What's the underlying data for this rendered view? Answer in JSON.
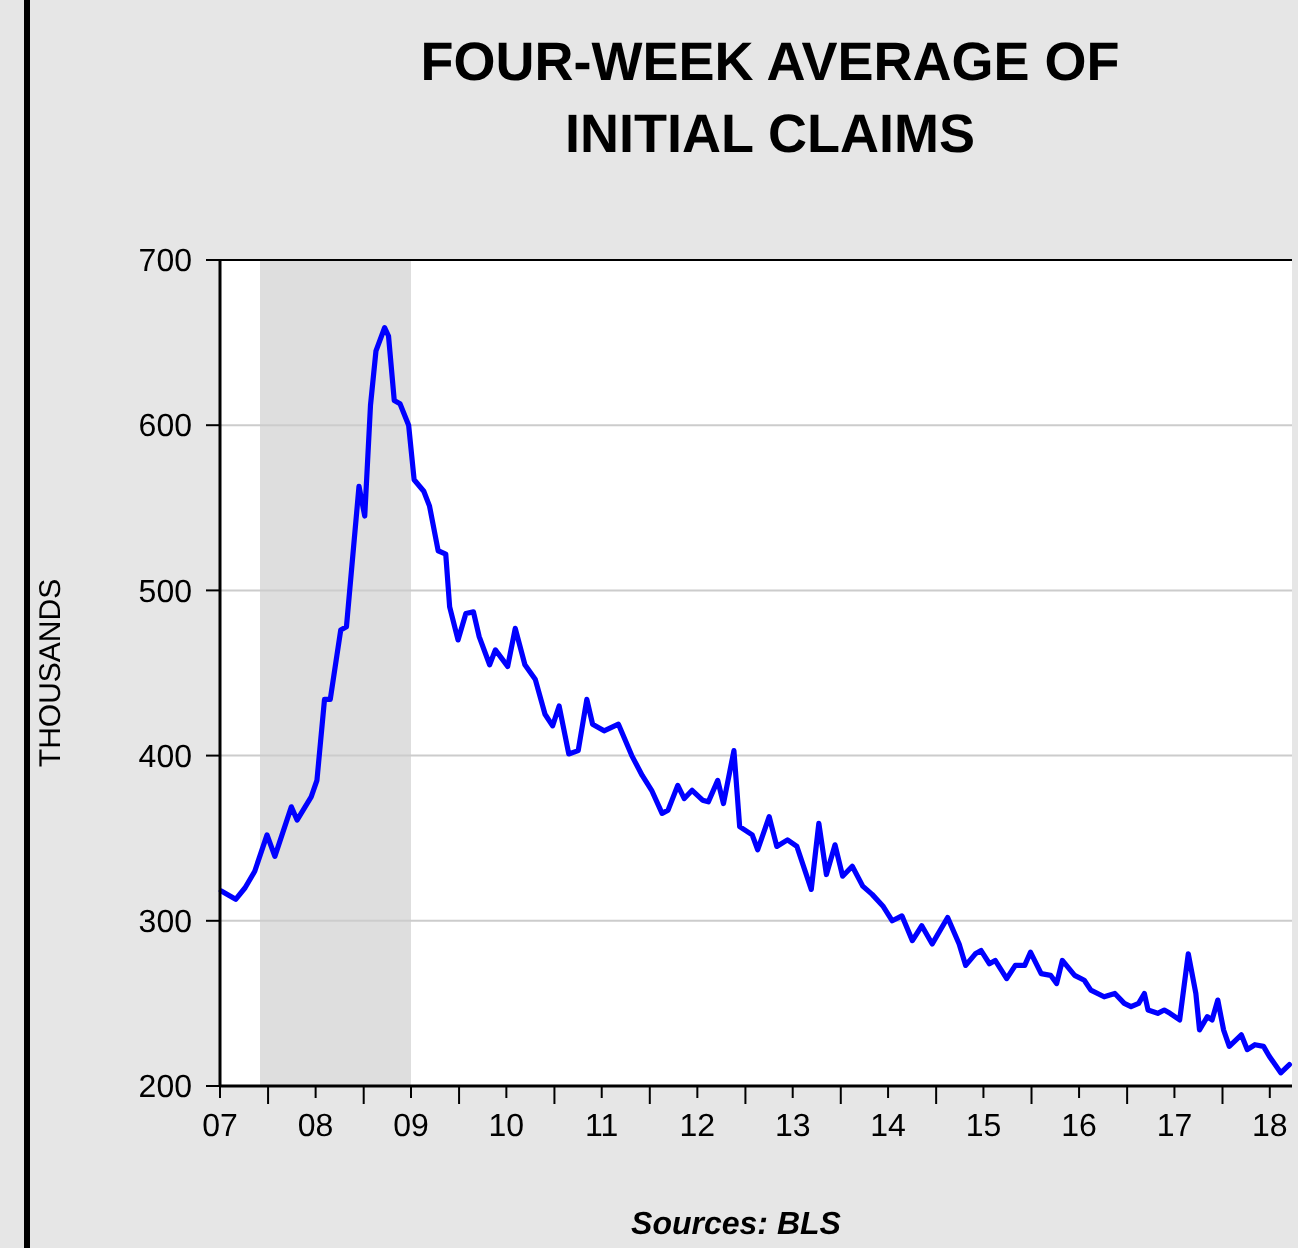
{
  "chart_data": {
    "type": "line",
    "title": "FOUR-WEEK AVERAGE OF INITIAL CLAIMS",
    "ylabel": "THOUSANDS",
    "annotations": [
      "Sources:  BLS"
    ],
    "xlim": [
      "2007-07-01",
      "2018-09-24"
    ],
    "ylim": [
      200,
      700
    ],
    "yticks": [
      200,
      300,
      400,
      500,
      600,
      700
    ],
    "xticks": [
      {
        "value": "2007-07-01",
        "label": "07"
      },
      {
        "value": "2008-01-01",
        "label": null
      },
      {
        "value": "2008-07-01",
        "label": "08"
      },
      {
        "value": "2009-01-01",
        "label": null
      },
      {
        "value": "2009-07-01",
        "label": "09"
      },
      {
        "value": "2010-01-01",
        "label": null
      },
      {
        "value": "2010-07-01",
        "label": "10"
      },
      {
        "value": "2011-01-01",
        "label": null
      },
      {
        "value": "2011-07-01",
        "label": "11"
      },
      {
        "value": "2012-01-01",
        "label": null
      },
      {
        "value": "2012-07-01",
        "label": "12"
      },
      {
        "value": "2013-01-01",
        "label": null
      },
      {
        "value": "2013-07-01",
        "label": "13"
      },
      {
        "value": "2014-01-01",
        "label": null
      },
      {
        "value": "2014-07-01",
        "label": "14"
      },
      {
        "value": "2015-01-01",
        "label": null
      },
      {
        "value": "2015-07-01",
        "label": "15"
      },
      {
        "value": "2016-01-01",
        "label": null
      },
      {
        "value": "2016-07-01",
        "label": "16"
      },
      {
        "value": "2017-01-01",
        "label": null
      },
      {
        "value": "2017-07-01",
        "label": "17"
      },
      {
        "value": "2018-01-01",
        "label": null
      },
      {
        "value": "2018-07-01",
        "label": "18"
      }
    ],
    "grid": "y",
    "bands": [
      {
        "axis": "x",
        "from": "2007-12-01",
        "to": "2009-07-01",
        "color": "#dedede"
      }
    ],
    "series": [
      {
        "color": "#0000ff",
        "line_style": "solid",
        "x": [
          "2007-07-06",
          "2007-08-30",
          "2007-10-05",
          "2007-11-11",
          "2007-12-28",
          "2008-01-27",
          "2008-03-30",
          "2008-04-21",
          "2008-06-14",
          "2008-07-06",
          "2008-08-04",
          "2008-08-26",
          "2008-10-05",
          "2008-10-27",
          "2008-12-14",
          "2009-01-05",
          "2009-01-27",
          "2009-02-17",
          "2009-03-22",
          "2009-04-06",
          "2009-04-28",
          "2009-05-20",
          "2009-06-22",
          "2009-07-13",
          "2009-08-19",
          "2009-09-10",
          "2009-10-13",
          "2009-11-11",
          "2009-11-26",
          "2009-12-28",
          "2010-01-27",
          "2010-02-25",
          "2010-03-19",
          "2010-04-28",
          "2010-05-20",
          "2010-07-06",
          "2010-08-04",
          "2010-09-10",
          "2010-10-20",
          "2010-11-26",
          "2010-12-25",
          "2011-01-19",
          "2011-02-25",
          "2011-04-02",
          "2011-05-05",
          "2011-05-27",
          "2011-07-10",
          "2011-09-03",
          "2011-10-24",
          "2011-12-03",
          "2012-01-08",
          "2012-02-17",
          "2012-03-11",
          "2012-04-17",
          "2012-05-12",
          "2012-06-11",
          "2012-07-21",
          "2012-08-12",
          "2012-09-17",
          "2012-10-09",
          "2012-11-18",
          "2012-12-10",
          "2013-01-27",
          "2013-02-17",
          "2013-04-02",
          "2013-05-01",
          "2013-06-11",
          "2013-07-17",
          "2013-09-10",
          "2013-10-09",
          "2013-11-07",
          "2013-12-10",
          "2014-01-08",
          "2014-02-14",
          "2014-03-26",
          "2014-05-01",
          "2014-06-11",
          "2014-07-17",
          "2014-08-23",
          "2014-10-02",
          "2014-11-07",
          "2014-12-17",
          "2015-02-14",
          "2015-03-30",
          "2015-04-24",
          "2015-05-31",
          "2015-06-22",
          "2015-07-24",
          "2015-08-15",
          "2015-09-28",
          "2015-10-31",
          "2015-12-06",
          "2015-12-28",
          "2016-02-07",
          "2016-03-14",
          "2016-04-06",
          "2016-04-28",
          "2016-06-14",
          "2016-07-21",
          "2016-08-15",
          "2016-10-05",
          "2016-11-15",
          "2016-12-21",
          "2017-01-16",
          "2017-02-14",
          "2017-03-08",
          "2017-03-22",
          "2017-04-28",
          "2017-05-23",
          "2017-06-14",
          "2017-07-21",
          "2017-08-23",
          "2017-09-21",
          "2017-10-05",
          "2017-11-04",
          "2017-11-22",
          "2017-12-14",
          "2018-01-05",
          "2018-01-27",
          "2018-03-14",
          "2018-04-06",
          "2018-05-05",
          "2018-06-07",
          "2018-06-29",
          "2018-08-12",
          "2018-09-14"
        ],
        "values": [
          318,
          313,
          320,
          330,
          352,
          339,
          369,
          361,
          375,
          385,
          434,
          434,
          476,
          478,
          563,
          545,
          612,
          645,
          659,
          654,
          615,
          613,
          600,
          567,
          560,
          551,
          524,
          522,
          490,
          470,
          486,
          487,
          472,
          455,
          464,
          454,
          477,
          455,
          446,
          425,
          418,
          430,
          401,
          403,
          434,
          419,
          415,
          419,
          400,
          388,
          379,
          365,
          367,
          382,
          374,
          379,
          373,
          372,
          385,
          371,
          403,
          357,
          352,
          343,
          363,
          345,
          349,
          345,
          319,
          359,
          328,
          346,
          327,
          333,
          321,
          316,
          309,
          300,
          303,
          288,
          297,
          286,
          302,
          286,
          273,
          280,
          282,
          274,
          276,
          265,
          273,
          273,
          281,
          268,
          267,
          262,
          276,
          267,
          264,
          258,
          254,
          256,
          250,
          248,
          250,
          256,
          246,
          244,
          246,
          244,
          240,
          280,
          256,
          234,
          242,
          240,
          252,
          234,
          224,
          231,
          222,
          225,
          224,
          218,
          208,
          213
        ]
      }
    ]
  }
}
